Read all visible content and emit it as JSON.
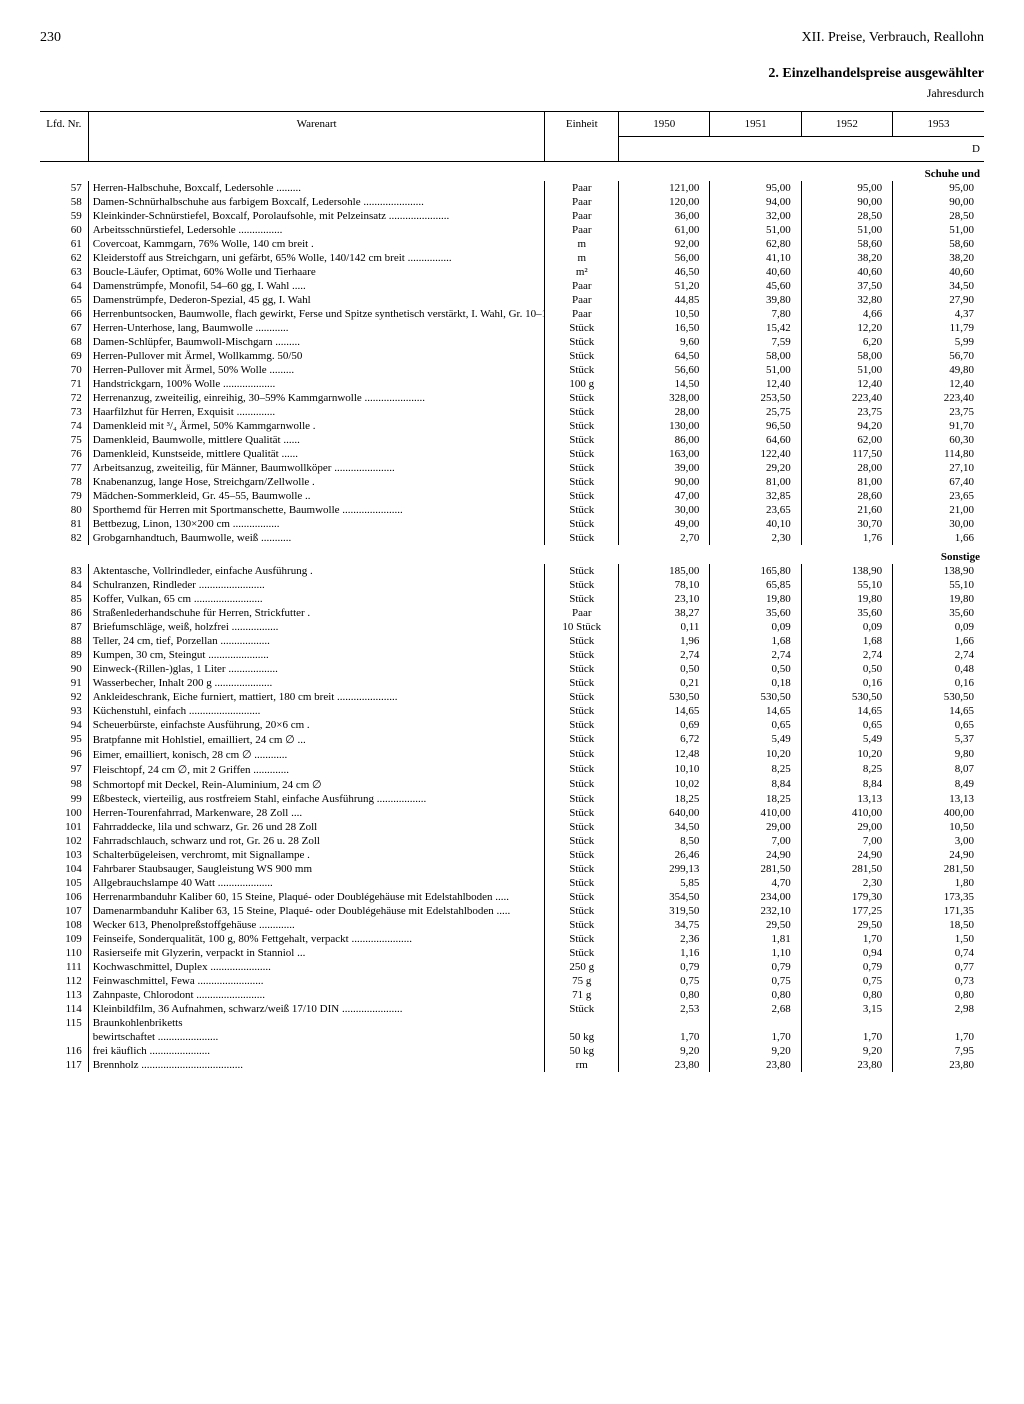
{
  "page_number": "230",
  "chapter_title": "XII. Preise, Verbrauch, Reallohn",
  "table_title": "2. Einzelhandelspreise ausgewählter",
  "table_subtitle": "Jahresdurch",
  "column_headers": {
    "nr": "Lfd.\nNr.",
    "name": "Warenart",
    "unit": "Einheit",
    "years": [
      "1950",
      "1951",
      "1952",
      "1953"
    ],
    "d_letter": "D"
  },
  "sections": [
    {
      "label": "Schuhe und",
      "rows": [
        {
          "nr": "57",
          "name": "Herren-Halbschuhe, Boxcalf, Ledersohle .........",
          "unit": "Paar",
          "v": [
            "121,00",
            "95,00",
            "95,00",
            "95,00"
          ]
        },
        {
          "nr": "58",
          "name": "Damen-Schnürhalbschuhe aus farbigem Boxcalf, Ledersohle ......................",
          "unit": "Paar",
          "v": [
            "120,00",
            "94,00",
            "90,00",
            "90,00"
          ]
        },
        {
          "nr": "59",
          "name": "Kleinkinder-Schnürstiefel, Boxcalf, Porolaufsohle, mit Pelzeinsatz ......................",
          "unit": "Paar",
          "v": [
            "36,00",
            "32,00",
            "28,50",
            "28,50"
          ]
        },
        {
          "nr": "60",
          "name": "Arbeitsschnürstiefel, Ledersohle ................",
          "unit": "Paar",
          "v": [
            "61,00",
            "51,00",
            "51,00",
            "51,00"
          ]
        },
        {
          "nr": "61",
          "name": "Covercoat, Kammgarn, 76% Wolle, 140 cm breit .",
          "unit": "m",
          "v": [
            "92,00",
            "62,80",
            "58,60",
            "58,60"
          ]
        },
        {
          "nr": "62",
          "name": "Kleiderstoff aus Streichgarn, uni gefärbt, 65% Wolle, 140/142 cm breit ................",
          "unit": "m",
          "v": [
            "56,00",
            "41,10",
            "38,20",
            "38,20"
          ]
        },
        {
          "nr": "63",
          "name": "Boucle-Läufer, Optimat, 60% Wolle und Tierhaare",
          "unit": "m²",
          "v": [
            "46,50",
            "40,60",
            "40,60",
            "40,60"
          ]
        },
        {
          "nr": "64",
          "name": "Damenstrümpfe, Monofil, 54–60 gg, I. Wahl .....",
          "unit": "Paar",
          "v": [
            "51,20",
            "45,60",
            "37,50",
            "34,50"
          ]
        },
        {
          "nr": "65",
          "name": "Damenstrümpfe, Dederon-Spezial, 45 gg, I. Wahl",
          "unit": "Paar",
          "v": [
            "44,85",
            "39,80",
            "32,80",
            "27,90"
          ]
        },
        {
          "nr": "66",
          "name": "Herrenbuntsocken, Baumwolle, flach gewirkt, Ferse und Spitze synthetisch verstärkt, I. Wahl, Gr. 10–12 ......................",
          "unit": "Paar",
          "v": [
            "10,50",
            "7,80",
            "4,66",
            "4,37"
          ]
        },
        {
          "nr": "67",
          "name": "Herren-Unterhose, lang, Baumwolle ............",
          "unit": "Stück",
          "v": [
            "16,50",
            "15,42",
            "12,20",
            "11,79"
          ]
        },
        {
          "nr": "68",
          "name": "Damen-Schlüpfer, Baumwoll-Mischgarn .........",
          "unit": "Stück",
          "v": [
            "9,60",
            "7,59",
            "6,20",
            "5,99"
          ]
        },
        {
          "nr": "69",
          "name": "Herren-Pullover mit Ärmel, Wollkammg. 50/50",
          "unit": "Stück",
          "v": [
            "64,50",
            "58,00",
            "58,00",
            "56,70"
          ]
        },
        {
          "nr": "70",
          "name": "Herren-Pullover mit Ärmel, 50% Wolle .........",
          "unit": "Stück",
          "v": [
            "56,60",
            "51,00",
            "51,00",
            "49,80"
          ]
        },
        {
          "nr": "71",
          "name": "Handstrickgarn, 100% Wolle ...................",
          "unit": "100 g",
          "v": [
            "14,50",
            "12,40",
            "12,40",
            "12,40"
          ]
        },
        {
          "nr": "72",
          "name": "Herrenanzug, zweiteilig, einreihig, 30–59% Kammgarnwolle ......................",
          "unit": "Stück",
          "v": [
            "328,00",
            "253,50",
            "223,40",
            "223,40"
          ]
        },
        {
          "nr": "73",
          "name": "Haarfilzhut für Herren, Exquisit ..............",
          "unit": "Stück",
          "v": [
            "28,00",
            "25,75",
            "23,75",
            "23,75"
          ]
        },
        {
          "nr": "74",
          "name": "Damenkleid mit ³/₄ Ärmel, 50% Kammgarnwolle .",
          "unit": "Stück",
          "v": [
            "130,00",
            "96,50",
            "94,20",
            "91,70"
          ]
        },
        {
          "nr": "75",
          "name": "Damenkleid, Baumwolle, mittlere Qualität ......",
          "unit": "Stück",
          "v": [
            "86,00",
            "64,60",
            "62,00",
            "60,30"
          ]
        },
        {
          "nr": "76",
          "name": "Damenkleid, Kunstseide, mittlere Qualität ......",
          "unit": "Stück",
          "v": [
            "163,00",
            "122,40",
            "117,50",
            "114,80"
          ]
        },
        {
          "nr": "77",
          "name": "Arbeitsanzug, zweiteilig, für Männer, Baumwollköper ......................",
          "unit": "Stück",
          "v": [
            "39,00",
            "29,20",
            "28,00",
            "27,10"
          ]
        },
        {
          "nr": "78",
          "name": "Knabenanzug, lange Hose, Streichgarn/Zellwolle .",
          "unit": "Stück",
          "v": [
            "90,00",
            "81,00",
            "81,00",
            "67,40"
          ]
        },
        {
          "nr": "79",
          "name": "Mädchen-Sommerkleid, Gr. 45–55, Baumwolle ..",
          "unit": "Stück",
          "v": [
            "47,00",
            "32,85",
            "28,60",
            "23,65"
          ]
        },
        {
          "nr": "80",
          "name": "Sporthemd für Herren mit Sportmanschette, Baumwolle ......................",
          "unit": "Stück",
          "v": [
            "30,00",
            "23,65",
            "21,60",
            "21,00"
          ]
        },
        {
          "nr": "81",
          "name": "Bettbezug, Linon, 130×200 cm .................",
          "unit": "Stück",
          "v": [
            "49,00",
            "40,10",
            "30,70",
            "30,00"
          ]
        },
        {
          "nr": "82",
          "name": "Grobgarnhandtuch, Baumwolle, weiß ...........",
          "unit": "Stück",
          "v": [
            "2,70",
            "2,30",
            "1,76",
            "1,66"
          ]
        }
      ]
    },
    {
      "label": "Sonstige",
      "rows": [
        {
          "nr": "83",
          "name": "Aktentasche, Vollrindleder, einfache Ausführung .",
          "unit": "Stück",
          "v": [
            "185,00",
            "165,80",
            "138,90",
            "138,90"
          ]
        },
        {
          "nr": "84",
          "name": "Schulranzen, Rindleder ........................",
          "unit": "Stück",
          "v": [
            "78,10",
            "65,85",
            "55,10",
            "55,10"
          ]
        },
        {
          "nr": "85",
          "name": "Koffer, Vulkan, 65 cm .........................",
          "unit": "Stück",
          "v": [
            "23,10",
            "19,80",
            "19,80",
            "19,80"
          ]
        },
        {
          "nr": "86",
          "name": "Straßenlederhandschuhe für Herren, Strickfutter .",
          "unit": "Paar",
          "v": [
            "38,27",
            "35,60",
            "35,60",
            "35,60"
          ]
        },
        {
          "nr": "87",
          "name": "Briefumschläge, weiß, holzfrei .................",
          "unit": "10 Stück",
          "v": [
            "0,11",
            "0,09",
            "0,09",
            "0,09"
          ]
        },
        {
          "nr": "88",
          "name": "Teller, 24 cm, tief, Porzellan ..................",
          "unit": "Stück",
          "v": [
            "1,96",
            "1,68",
            "1,68",
            "1,66"
          ]
        },
        {
          "nr": "89",
          "name": "Kumpen, 30 cm, Steingut ......................",
          "unit": "Stück",
          "v": [
            "2,74",
            "2,74",
            "2,74",
            "2,74"
          ]
        },
        {
          "nr": "90",
          "name": "Einweck-(Rillen-)glas, 1 Liter ..................",
          "unit": "Stück",
          "v": [
            "0,50",
            "0,50",
            "0,50",
            "0,48"
          ]
        },
        {
          "nr": "91",
          "name": "Wasserbecher, Inhalt 200 g .....................",
          "unit": "Stück",
          "v": [
            "0,21",
            "0,18",
            "0,16",
            "0,16"
          ]
        },
        {
          "nr": "92",
          "name": "Ankleideschrank, Eiche furniert, mattiert, 180 cm breit ......................",
          "unit": "Stück",
          "v": [
            "530,50",
            "530,50",
            "530,50",
            "530,50"
          ]
        },
        {
          "nr": "93",
          "name": "Küchenstuhl, einfach ..........................",
          "unit": "Stück",
          "v": [
            "14,65",
            "14,65",
            "14,65",
            "14,65"
          ]
        },
        {
          "nr": "94",
          "name": "Scheuerbürste, einfachste Ausführung, 20×6 cm .",
          "unit": "Stück",
          "v": [
            "0,69",
            "0,65",
            "0,65",
            "0,65"
          ]
        },
        {
          "nr": "95",
          "name": "Bratpfanne mit Hohlstiel, emailliert, 24 cm ∅ ...",
          "unit": "Stück",
          "v": [
            "6,72",
            "5,49",
            "5,49",
            "5,37"
          ]
        },
        {
          "nr": "96",
          "name": "Eimer, emailliert, konisch, 28 cm ∅ ............",
          "unit": "Stück",
          "v": [
            "12,48",
            "10,20",
            "10,20",
            "9,80"
          ]
        },
        {
          "nr": "97",
          "name": "Fleischtopf, 24 cm ∅, mit 2 Griffen .............",
          "unit": "Stück",
          "v": [
            "10,10",
            "8,25",
            "8,25",
            "8,07"
          ]
        },
        {
          "nr": "98",
          "name": "Schmortopf mit Deckel, Rein-Aluminium, 24 cm ∅",
          "unit": "Stück",
          "v": [
            "10,02",
            "8,84",
            "8,84",
            "8,49"
          ]
        },
        {
          "nr": "99",
          "name": "Eßbesteck, vierteilig, aus rostfreiem Stahl, einfache Ausführung ..................",
          "unit": "Stück",
          "v": [
            "18,25",
            "18,25",
            "13,13",
            "13,13"
          ]
        },
        {
          "nr": "100",
          "name": "Herren-Tourenfahrrad, Markenware, 28 Zoll ....",
          "unit": "Stück",
          "v": [
            "640,00",
            "410,00",
            "410,00",
            "400,00"
          ]
        },
        {
          "nr": "101",
          "name": "Fahrraddecke, lila und schwarz, Gr. 26 und 28 Zoll",
          "unit": "Stück",
          "v": [
            "34,50",
            "29,00",
            "29,00",
            "10,50"
          ]
        },
        {
          "nr": "102",
          "name": "Fahrradschlauch, schwarz und rot, Gr. 26 u. 28 Zoll",
          "unit": "Stück",
          "v": [
            "8,50",
            "7,00",
            "7,00",
            "3,00"
          ]
        },
        {
          "nr": "103",
          "name": "Schalterbügeleisen, verchromt, mit Signallampe .",
          "unit": "Stück",
          "v": [
            "26,46",
            "24,90",
            "24,90",
            "24,90"
          ]
        },
        {
          "nr": "104",
          "name": "Fahrbarer Staubsauger, Saugleistung WS 900 mm",
          "unit": "Stück",
          "v": [
            "299,13",
            "281,50",
            "281,50",
            "281,50"
          ]
        },
        {
          "nr": "105",
          "name": "Allgebrauchslampe 40 Watt ....................",
          "unit": "Stück",
          "v": [
            "5,85",
            "4,70",
            "2,30",
            "1,80"
          ]
        },
        {
          "nr": "106",
          "name": "Herrenarmbanduhr Kaliber 60, 15 Steine, Plaqué- oder Doublégehäuse mit Edelstahlboden .....",
          "unit": "Stück",
          "v": [
            "354,50",
            "234,00",
            "179,30",
            "173,35"
          ]
        },
        {
          "nr": "107",
          "name": "Damenarmbanduhr Kaliber 63, 15 Steine, Plaqué- oder Doublégehäuse mit Edelstahlboden .....",
          "unit": "Stück",
          "v": [
            "319,50",
            "232,10",
            "177,25",
            "171,35"
          ]
        },
        {
          "nr": "108",
          "name": "Wecker 613, Phenolpreßstoffgehäuse .............",
          "unit": "Stück",
          "v": [
            "34,75",
            "29,50",
            "29,50",
            "18,50"
          ]
        },
        {
          "nr": "109",
          "name": "Feinseife, Sonderqualität, 100 g, 80% Fettgehalt, verpackt ......................",
          "unit": "Stück",
          "v": [
            "2,36",
            "1,81",
            "1,70",
            "1,50"
          ]
        },
        {
          "nr": "110",
          "name": "Rasierseife mit Glyzerin, verpackt in Stanniol ...",
          "unit": "Stück",
          "v": [
            "1,16",
            "1,10",
            "0,94",
            "0,74"
          ]
        },
        {
          "nr": "111",
          "name": "Kochwaschmittel, Duplex ......................",
          "unit": "250 g",
          "v": [
            "0,79",
            "0,79",
            "0,79",
            "0,77"
          ]
        },
        {
          "nr": "112",
          "name": "Feinwaschmittel, Fewa ........................",
          "unit": "75 g",
          "v": [
            "0,75",
            "0,75",
            "0,75",
            "0,73"
          ]
        },
        {
          "nr": "113",
          "name": "Zahnpaste, Chlorodont .........................",
          "unit": "71 g",
          "v": [
            "0,80",
            "0,80",
            "0,80",
            "0,80"
          ]
        },
        {
          "nr": "114",
          "name": "Kleinbildfilm, 36 Aufnahmen, schwarz/weiß 17/10 DIN ......................",
          "unit": "Stück",
          "v": [
            "2,53",
            "2,68",
            "3,15",
            "2,98"
          ]
        },
        {
          "nr": "115",
          "name": "Braunkohlenbriketts",
          "unit": "",
          "v": [
            "",
            "",
            "",
            ""
          ]
        },
        {
          "nr": "",
          "name": "    bewirtschaftet ......................",
          "unit": "50 kg",
          "v": [
            "1,70",
            "1,70",
            "1,70",
            "1,70"
          ]
        },
        {
          "nr": "116",
          "name": "    frei käuflich ......................",
          "unit": "50 kg",
          "v": [
            "9,20",
            "9,20",
            "9,20",
            "7,95"
          ]
        },
        {
          "nr": "117",
          "name": "Brennholz .....................................",
          "unit": "rm",
          "v": [
            "23,80",
            "23,80",
            "23,80",
            "23,80"
          ]
        }
      ]
    }
  ]
}
